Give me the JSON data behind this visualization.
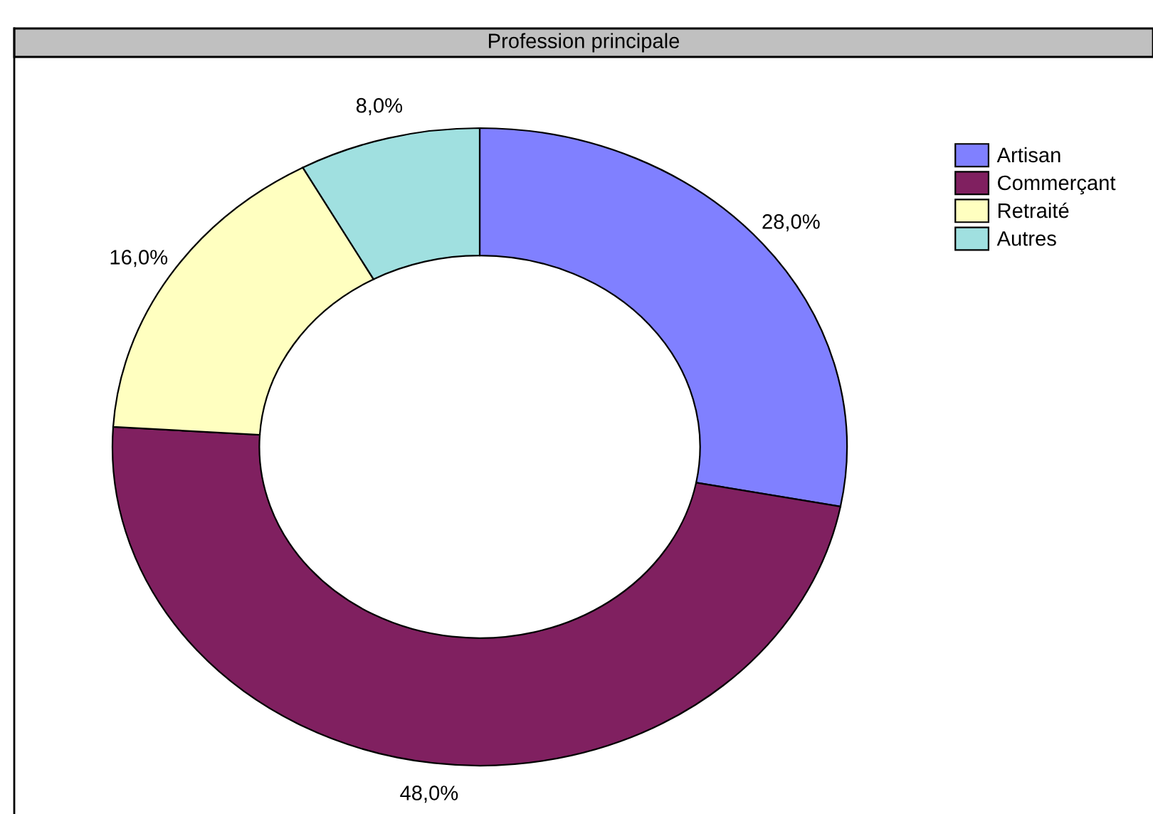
{
  "chart_data": {
    "type": "donut",
    "title": "Profession principale",
    "categories": [
      "Artisan",
      "Commerçant",
      "Retraité",
      "Autres"
    ],
    "values": [
      28,
      48,
      16,
      8
    ],
    "colors": [
      "#8080ff",
      "#802060",
      "#ffffc0",
      "#a0e0e0"
    ],
    "value_labels": [
      "28,0%",
      "48,0%",
      "16,0%",
      "8,0%"
    ],
    "legend": "top right"
  }
}
